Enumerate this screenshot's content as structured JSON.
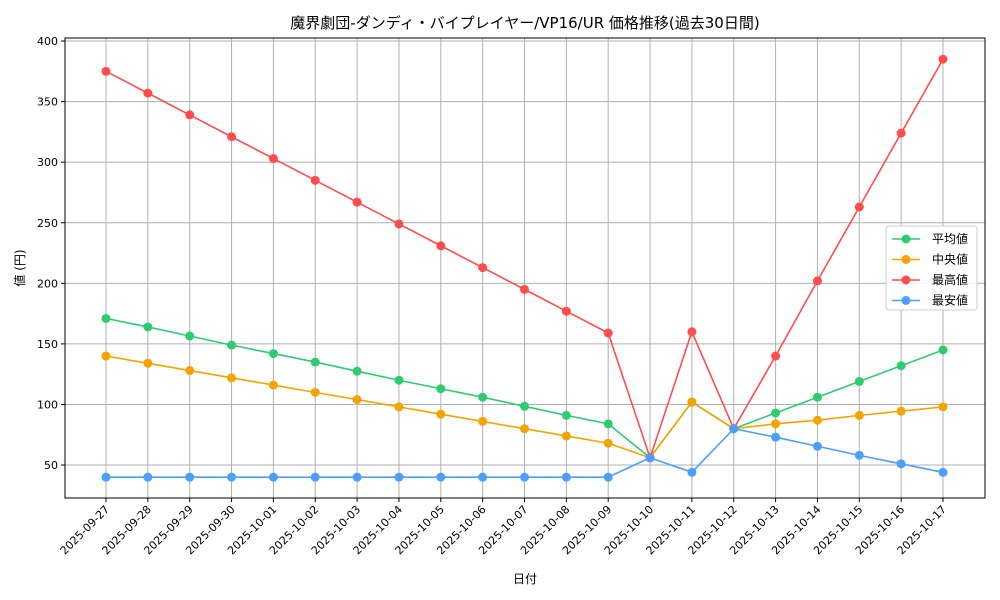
{
  "chart_data": {
    "type": "line",
    "title": "魔界劇団-ダンディ・バイプレイヤー/VP16/UR 価格推移(過去30日間)",
    "xlabel": "日付",
    "ylabel": "値 (円)",
    "x": [
      "2025-09-27",
      "2025-09-28",
      "2025-09-29",
      "2025-09-30",
      "2025-10-01",
      "2025-10-02",
      "2025-10-03",
      "2025-10-04",
      "2025-10-05",
      "2025-10-06",
      "2025-10-07",
      "2025-10-08",
      "2025-10-09",
      "2025-10-10",
      "2025-10-11",
      "2025-10-12",
      "2025-10-13",
      "2025-10-14",
      "2025-10-15",
      "2025-10-16",
      "2025-10-17"
    ],
    "ylim": [
      22.8,
      402.5
    ],
    "yticks": [
      50,
      100,
      150,
      200,
      250,
      300,
      350,
      400
    ],
    "grid": true,
    "legend_position": "right",
    "series": [
      {
        "name": "平均値",
        "color": "#2ecc71",
        "values": [
          171,
          164,
          156.5,
          149,
          142,
          135,
          127.5,
          120,
          113,
          106,
          98.5,
          91,
          84,
          56,
          102,
          80,
          93,
          106,
          119,
          132,
          145
        ]
      },
      {
        "name": "中央値",
        "color": "#f5a300",
        "values": [
          140,
          134,
          128,
          122,
          116,
          110,
          104,
          98,
          92,
          86,
          80,
          74,
          68,
          56,
          102,
          80,
          84,
          87,
          91,
          94.5,
          98
        ]
      },
      {
        "name": "最高値",
        "color": "#ff4d4d",
        "values": [
          375,
          357,
          339,
          321,
          303,
          285,
          267,
          249,
          231,
          213,
          195,
          177,
          159,
          56,
          160,
          80,
          140,
          202,
          263,
          324,
          385
        ]
      },
      {
        "name": "最安値",
        "color": "#4d9fff",
        "values": [
          40,
          40,
          40,
          40,
          40,
          40,
          40,
          40,
          40,
          40,
          40,
          40,
          40,
          56,
          44,
          80,
          73,
          65.5,
          58,
          51,
          44
        ]
      }
    ]
  }
}
